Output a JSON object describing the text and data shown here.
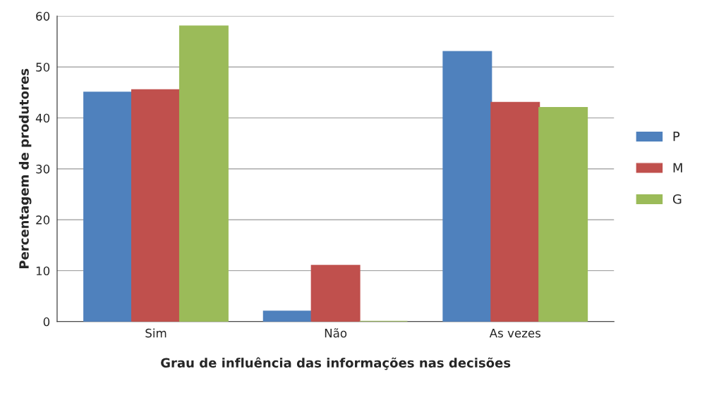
{
  "chart_data": {
    "type": "bar",
    "xlabel": "Grau de influência das informações nas decisões",
    "ylabel": "Percentagem de produtores",
    "categories": [
      "Sim",
      "Não",
      "As vezes"
    ],
    "series": [
      {
        "name": "P",
        "color": "#4f81bd",
        "values": [
          45,
          2,
          53
        ]
      },
      {
        "name": "M",
        "color": "#c0504d",
        "values": [
          45.5,
          11,
          43
        ]
      },
      {
        "name": "G",
        "color": "#9bbb59",
        "values": [
          58,
          0,
          42
        ]
      }
    ],
    "ylim": [
      0,
      60
    ],
    "yticks": [
      0,
      10,
      20,
      30,
      40,
      50,
      60
    ],
    "grid": "y",
    "legend": "right"
  }
}
